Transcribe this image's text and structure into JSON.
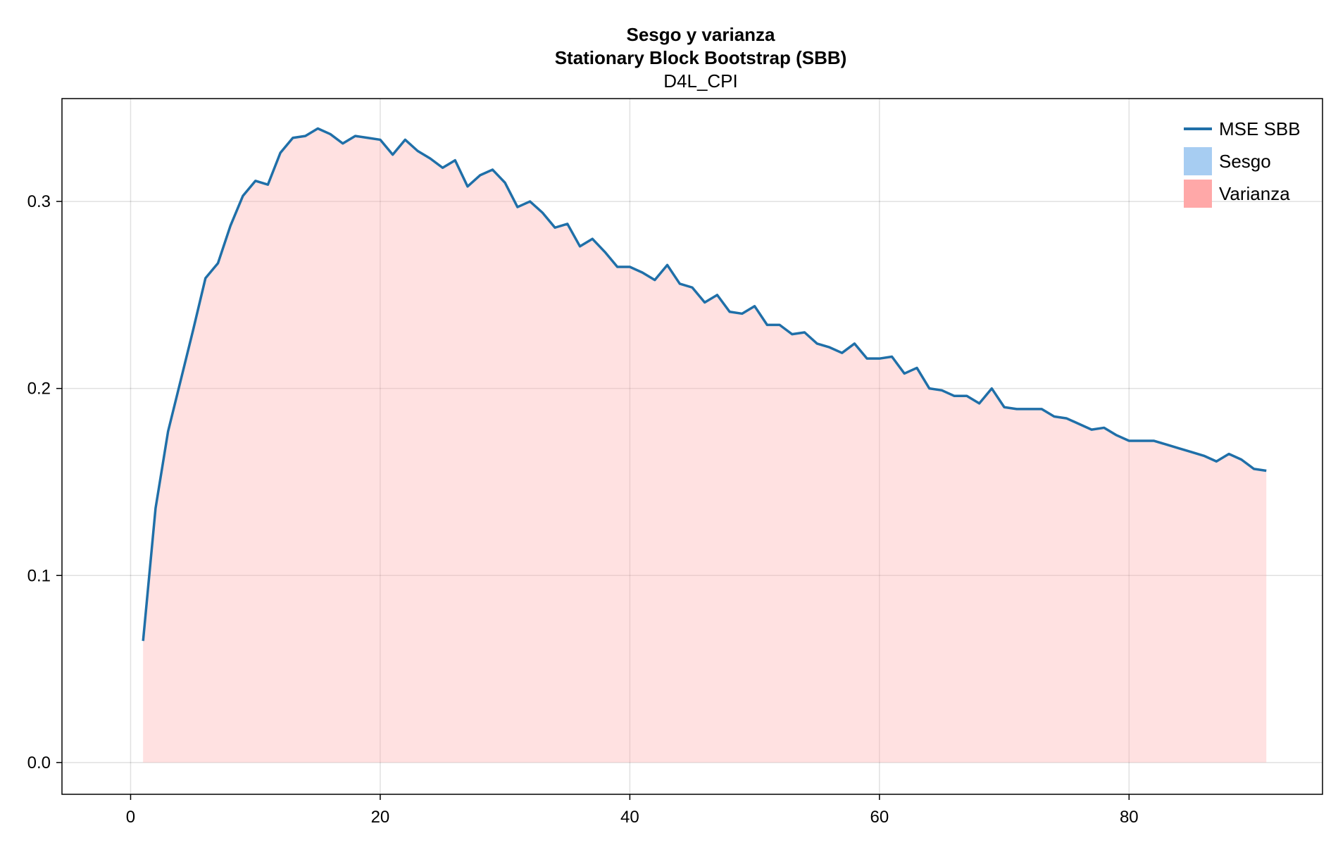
{
  "chart_data": {
    "type": "area",
    "title": "Sesgo y varianza",
    "subtitle": "Stationary Block Bootstrap (SBB)",
    "subsubtitle": "D4L_CPI",
    "xlim": [
      -5.5,
      95.5
    ],
    "ylim": [
      -0.017,
      0.355
    ],
    "xticks": [
      0,
      20,
      40,
      60,
      80
    ],
    "yticks": [
      0.0,
      0.1,
      0.2,
      0.3
    ],
    "ytick_labels": [
      "0.0",
      "0.1",
      "0.2",
      "0.3"
    ],
    "grid": true,
    "legend_position": "top-right",
    "series": [
      {
        "name": "MSE SBB",
        "kind": "line",
        "color": "#1f6fa8",
        "x": [
          1,
          2,
          3,
          4,
          5,
          6,
          7,
          8,
          9,
          10,
          11,
          12,
          13,
          14,
          15,
          16,
          17,
          18,
          19,
          20,
          21,
          22,
          23,
          24,
          25,
          26,
          27,
          28,
          29,
          30,
          31,
          32,
          33,
          34,
          35,
          36,
          37,
          38,
          39,
          40,
          41,
          42,
          43,
          44,
          45,
          46,
          47,
          48,
          49,
          50,
          51,
          52,
          53,
          54,
          55,
          56,
          57,
          58,
          59,
          60,
          61,
          62,
          63,
          64,
          65,
          66,
          67,
          68,
          69,
          70,
          71,
          72,
          73,
          74,
          75,
          76,
          77,
          78,
          79,
          80,
          81,
          82,
          83,
          84,
          85,
          86,
          87,
          88,
          89,
          90,
          91
        ],
        "y": [
          0.065,
          0.136,
          0.177,
          0.204,
          0.231,
          0.259,
          0.267,
          0.287,
          0.303,
          0.311,
          0.309,
          0.326,
          0.334,
          0.335,
          0.339,
          0.336,
          0.331,
          0.335,
          0.334,
          0.333,
          0.325,
          0.333,
          0.327,
          0.323,
          0.318,
          0.322,
          0.308,
          0.314,
          0.317,
          0.31,
          0.297,
          0.3,
          0.294,
          0.286,
          0.288,
          0.276,
          0.28,
          0.273,
          0.265,
          0.265,
          0.262,
          0.258,
          0.266,
          0.256,
          0.254,
          0.246,
          0.25,
          0.241,
          0.24,
          0.244,
          0.234,
          0.234,
          0.229,
          0.23,
          0.224,
          0.222,
          0.219,
          0.224,
          0.216,
          0.216,
          0.217,
          0.208,
          0.211,
          0.2,
          0.199,
          0.196,
          0.196,
          0.192,
          0.2,
          0.19,
          0.189,
          0.189,
          0.189,
          0.185,
          0.184,
          0.181,
          0.178,
          0.179,
          0.175,
          0.172,
          0.172,
          0.172,
          0.17,
          0.168,
          0.166,
          0.164,
          0.161,
          0.165,
          0.162,
          0.157,
          0.156
        ]
      },
      {
        "name": "Sesgo",
        "kind": "area",
        "color": "#a7cdf2",
        "values_note": "",
        "y": []
      },
      {
        "name": "Varianza",
        "kind": "area",
        "color": "#ffa8a8",
        "fill_opacity": 0.35,
        "y_from_series": "MSE SBB"
      }
    ]
  }
}
